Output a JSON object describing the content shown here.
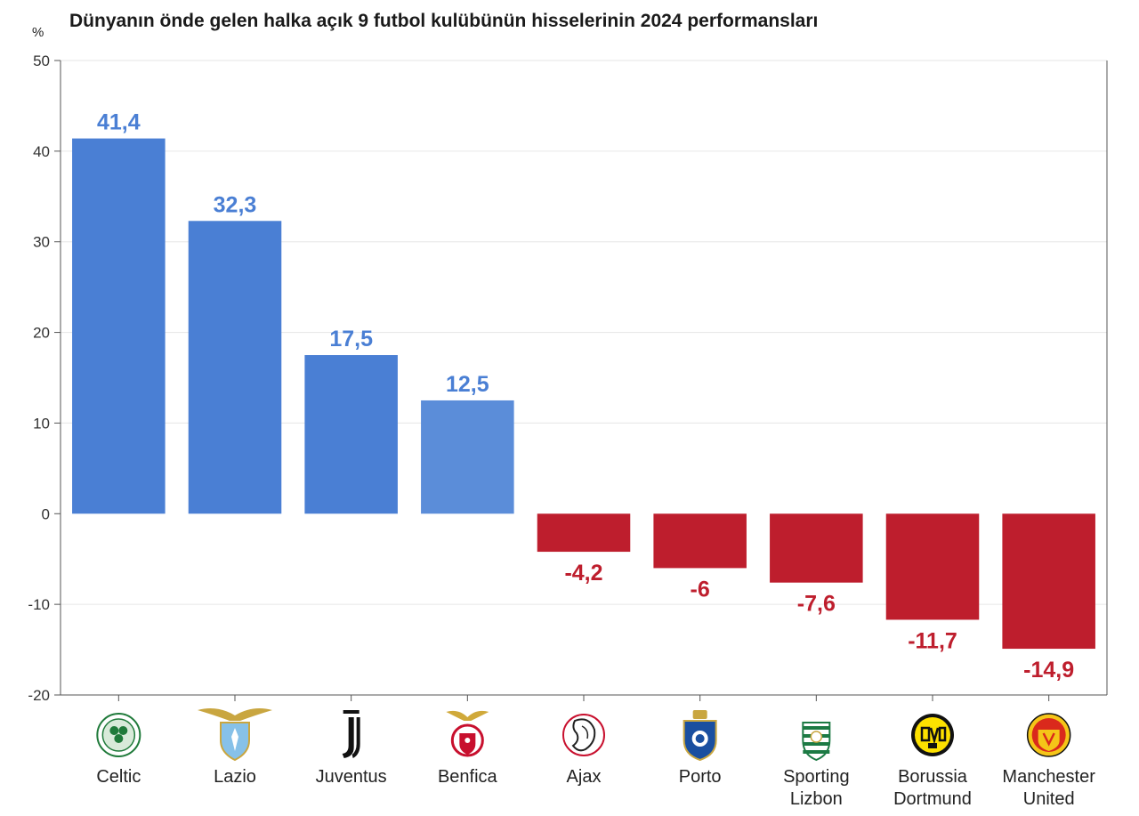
{
  "chart_data": {
    "type": "bar",
    "title": "Dünyanın önde gelen halka açık 9 futbol kulübünün hisselerinin 2024 performansları",
    "ylabel": "%",
    "xlabel": "",
    "ylim": [
      -20,
      50
    ],
    "yticks": [
      50,
      40,
      30,
      20,
      10,
      0,
      -10,
      -20
    ],
    "grid": true,
    "categories": [
      [
        "Celtic"
      ],
      [
        "Lazio"
      ],
      [
        "Juventus"
      ],
      [
        "Benfica"
      ],
      [
        "Ajax"
      ],
      [
        "Porto"
      ],
      [
        "Sporting",
        "Lizbon"
      ],
      [
        "Borussia",
        "Dortmund"
      ],
      [
        "Manchester",
        "United"
      ]
    ],
    "values": [
      41.4,
      32.3,
      17.5,
      12.5,
      -4.2,
      -6,
      -7.6,
      -11.7,
      -14.9
    ],
    "value_labels": [
      "41,4",
      "32,3",
      "17,5",
      "12,5",
      "-4,2",
      "-6",
      "-7,6",
      "-11,7",
      "-14,9"
    ],
    "icons": [
      "celtic-logo-icon",
      "lazio-logo-icon",
      "juventus-logo-icon",
      "benfica-logo-icon",
      "ajax-logo-icon",
      "porto-logo-icon",
      "sporting-logo-icon",
      "dortmund-logo-icon",
      "manchester-united-logo-icon"
    ],
    "colors": {
      "positive": "#4a7fd4",
      "positive_label": "#4a7fd4",
      "negative": "#be1e2d",
      "negative_label": "#be1e2d",
      "grid": "#e6e6e6",
      "axis": "#555555"
    }
  }
}
